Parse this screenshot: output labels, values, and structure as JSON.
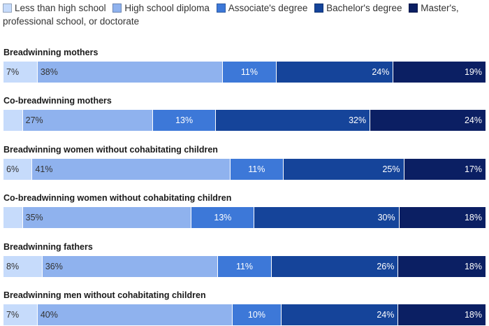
{
  "legend": [
    {
      "label": "Less than high school",
      "color": "#c6dbfb"
    },
    {
      "label": "High school diploma",
      "color": "#8fb2ee"
    },
    {
      "label": "Associate's degree",
      "color": "#3d78d8"
    },
    {
      "label": "Bachelor's degree",
      "color": "#15449a"
    },
    {
      "label": "Master's, professional school, or doctorate",
      "color": "#0b1f63"
    }
  ],
  "chart_data": {
    "type": "bar",
    "orientation": "horizontal-stacked-100",
    "categories": [
      "Breadwinning mothers",
      "Co-breadwinning mothers",
      "Breadwinning women without cohabitating children",
      "Co-breadwinning women without cohabitating children",
      "Breadwinning fathers",
      "Breadwinning men without cohabitating children"
    ],
    "series": [
      {
        "name": "Less than high school",
        "values": [
          7,
          4,
          6,
          4,
          8,
          7
        ],
        "labels": [
          "7%",
          "",
          "6%",
          "",
          "8%",
          "7%"
        ]
      },
      {
        "name": "High school diploma",
        "values": [
          38,
          27,
          41,
          35,
          36,
          40
        ],
        "labels": [
          "38%",
          "27%",
          "41%",
          "35%",
          "36%",
          "40%"
        ]
      },
      {
        "name": "Associate's degree",
        "values": [
          11,
          13,
          11,
          13,
          11,
          10
        ],
        "labels": [
          "11%",
          "13%",
          "11%",
          "13%",
          "11%",
          "10%"
        ]
      },
      {
        "name": "Bachelor's degree",
        "values": [
          24,
          32,
          25,
          30,
          26,
          24
        ],
        "labels": [
          "24%",
          "32%",
          "25%",
          "30%",
          "26%",
          "24%"
        ]
      },
      {
        "name": "Master's, professional school, or doctorate",
        "values": [
          19,
          24,
          17,
          18,
          18,
          18
        ],
        "labels": [
          "19%",
          "24%",
          "17%",
          "18%",
          "18%",
          "18%"
        ]
      }
    ],
    "legend_position": "top",
    "grid": false
  }
}
